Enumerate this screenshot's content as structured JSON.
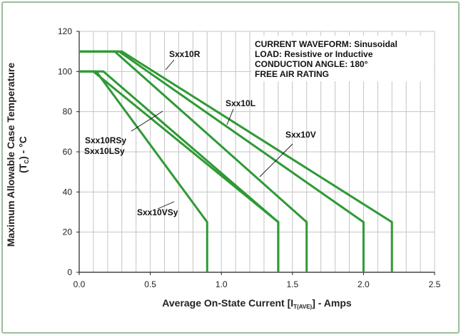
{
  "chart_data": {
    "type": "line",
    "xlabel": "Average On-State Current [I",
    "xlabel_sub": "T(AVE)",
    "xlabel_tail": "] - Amps",
    "ylabel": "Maximum Allowable Case Temperature",
    "ylabel2_pre": "(T",
    "ylabel2_sub": "C",
    "ylabel2_post": ") - °C",
    "xlim": [
      0,
      2.5
    ],
    "ylim": [
      0,
      120
    ],
    "xticks": [
      "0.0",
      "0.5",
      "1.0",
      "1.5",
      "2.0",
      "2.5"
    ],
    "yticks": [
      "0",
      "20",
      "40",
      "60",
      "80",
      "100",
      "120"
    ],
    "grid": true,
    "line_color": "#2e9a35",
    "annotations": [
      "CURRENT WAVEFORM: Sinusoidal",
      "LOAD: Resistive or Inductive",
      "CONDUCTION ANGLE: 180°",
      "FREE AIR RATING"
    ],
    "labels": {
      "r": "Sxx10R",
      "l": "Sxx10L",
      "v": "Sxx10V",
      "rsy": "Sxx10RSy",
      "lsy": "Sxx10LSy",
      "vsy": "Sxx10VSy"
    },
    "series": [
      {
        "x": [
          0,
          0.3,
          2.2,
          2.2
        ],
        "y": [
          110,
          110,
          25,
          0
        ]
      },
      {
        "x": [
          0,
          0.28,
          2.0,
          2.0
        ],
        "y": [
          110,
          110,
          25,
          0
        ]
      },
      {
        "x": [
          0,
          0.25,
          1.6,
          1.6
        ],
        "y": [
          110,
          110,
          25,
          0
        ]
      },
      {
        "x": [
          0,
          0.17,
          1.4,
          1.4
        ],
        "y": [
          100,
          100,
          25,
          0
        ]
      },
      {
        "x": [
          0,
          0.1,
          1.4,
          1.4
        ],
        "y": [
          100,
          100,
          25,
          0
        ]
      },
      {
        "x": [
          0,
          0.12,
          0.9,
          0.9
        ],
        "y": [
          100,
          100,
          25,
          0
        ]
      }
    ]
  }
}
